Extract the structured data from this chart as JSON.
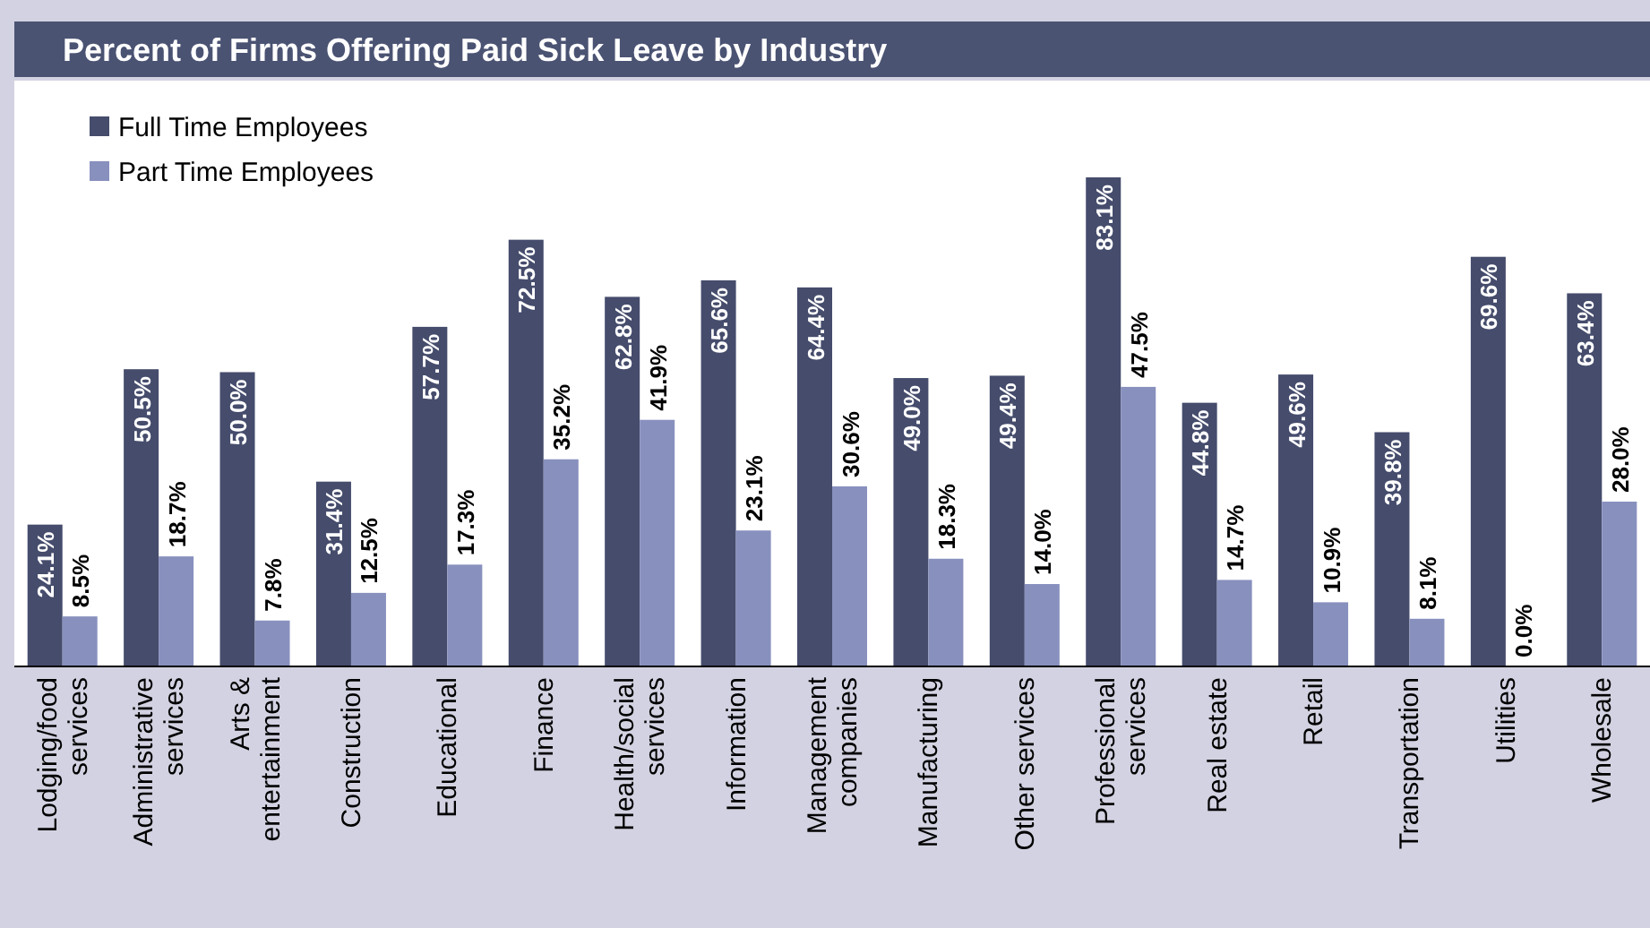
{
  "chart_data": {
    "type": "bar",
    "title": "Percent of Firms Offering Paid Sick Leave by Industry",
    "legend": "top left",
    "categories": [
      "Lodging/food services",
      "Administrative services",
      "Arts & entertainment",
      "Construction",
      "Educational",
      "Finance",
      "Health/social services",
      "Information",
      "Management companies",
      "Manufacturing",
      "Other services",
      "Professional services",
      "Real estate",
      "Retail",
      "Transportation",
      "Utilities",
      "Wholesale"
    ],
    "series": [
      {
        "name": "Full Time Employees",
        "color": "#454c6c",
        "values": [
          24.1,
          50.5,
          50.0,
          31.4,
          57.7,
          72.5,
          62.8,
          65.6,
          64.4,
          49.0,
          49.4,
          83.1,
          44.8,
          49.6,
          39.8,
          69.6,
          63.4
        ],
        "value_labels": [
          "24.1%",
          "50.5%",
          "50.0%",
          "31.4%",
          "57.7%",
          "72.5%",
          "62.8%",
          "65.6%",
          "64.4%",
          "49.0%",
          "49.4%",
          "83.1%",
          "44.8%",
          "49.6%",
          "39.8%",
          "69.6%",
          "63.4%"
        ]
      },
      {
        "name": "Part Time Employees",
        "color": "#8890be",
        "values": [
          8.5,
          18.7,
          7.8,
          12.5,
          17.3,
          35.2,
          41.9,
          23.1,
          30.6,
          18.3,
          14.0,
          47.5,
          14.7,
          10.9,
          8.1,
          0.0,
          28.0
        ],
        "value_labels": [
          "8.5%",
          "18.7%",
          "7.8%",
          "12.5%",
          "17.3%",
          "35.2%",
          "41.9%",
          "23.1%",
          "30.6%",
          "18.3%",
          "14.0%",
          "47.5%",
          "14.7%",
          "10.9%",
          "8.1%",
          "0.0%",
          "28.0%"
        ]
      }
    ]
  }
}
